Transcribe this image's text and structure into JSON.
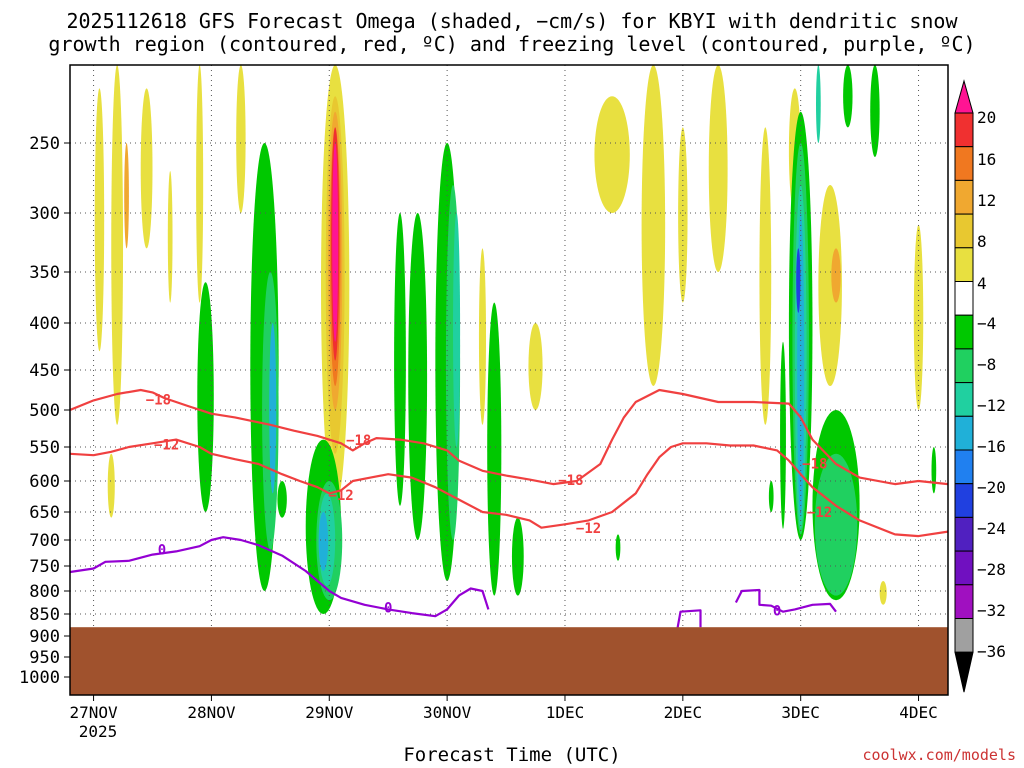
{
  "title_line1": "2025112618 GFS Forecast Omega (shaded, −cm/s) for KBYI with dendritic snow",
  "title_line2": "growth region (contoured, red, ºC) and freezing level (contoured, purple, ºC)",
  "xlabel": "Forecast Time (UTC)",
  "credit": "coolwx.com/models",
  "year_label": "2025",
  "colors": {
    "terrain": "#a0522d",
    "red_contour": "#f04040",
    "purple_contour": "#9400d3",
    "grid": "#555555"
  },
  "chart_data": {
    "type": "time-height cross section",
    "x_ticks": [
      "27NOV",
      "28NOV",
      "29NOV",
      "30NOV",
      "1DEC",
      "2DEC",
      "3DEC",
      "4DEC"
    ],
    "y_ticks": [
      250,
      300,
      350,
      400,
      450,
      500,
      550,
      600,
      650,
      700,
      750,
      800,
      850,
      900,
      950,
      1000
    ],
    "y_tick_labels": [
      "250",
      "300",
      "350",
      "400",
      "450",
      "500",
      "550",
      "600",
      "650",
      "700",
      "750",
      "800",
      "850",
      "900",
      "950",
      "1000"
    ],
    "ylim_hpa": [
      200,
      1000
    ],
    "xlim_days": [
      -0.2,
      7.25
    ],
    "surface_pressure_hpa": 880,
    "colorbar": {
      "labels": [
        "20",
        "16",
        "12",
        "8",
        "4",
        "−4",
        "−8",
        "−12",
        "−16",
        "−20",
        "−24",
        "−28",
        "−32",
        "−36"
      ],
      "colors": [
        "#ff1493",
        "#f03030",
        "#f07820",
        "#f0a830",
        "#e8c830",
        "#e8e040",
        "#ffffff",
        "#00c800",
        "#20d060",
        "#20d0a0",
        "#20b0d8",
        "#2080f0",
        "#2040e0",
        "#5020c0",
        "#7010c0",
        "#a010c0",
        "#a0a0a0",
        "#000000"
      ]
    },
    "contour_labels": [
      {
        "text": "−18",
        "color": "red",
        "day": 0.55,
        "p": 488
      },
      {
        "text": "−12",
        "color": "red",
        "day": 0.62,
        "p": 548
      },
      {
        "text": "−18",
        "color": "red",
        "day": 2.25,
        "p": 542
      },
      {
        "text": "−12",
        "color": "red",
        "day": 2.1,
        "p": 624
      },
      {
        "text": "−18",
        "color": "red",
        "day": 4.05,
        "p": 600
      },
      {
        "text": "−12",
        "color": "red",
        "day": 4.2,
        "p": 680
      },
      {
        "text": "−18",
        "color": "red",
        "day": 6.12,
        "p": 576
      },
      {
        "text": "−12",
        "color": "red",
        "day": 6.16,
        "p": 652
      },
      {
        "text": "0",
        "color": "purple",
        "day": 0.58,
        "p": 720
      },
      {
        "text": "0",
        "color": "purple",
        "day": 2.5,
        "p": 838
      },
      {
        "text": "0",
        "color": "purple",
        "day": 5.8,
        "p": 845
      }
    ],
    "isotherm_m18": [
      [
        -0.2,
        500
      ],
      [
        0.0,
        488
      ],
      [
        0.2,
        480
      ],
      [
        0.4,
        475
      ],
      [
        0.5,
        478
      ],
      [
        0.6,
        485
      ],
      [
        0.8,
        495
      ],
      [
        1.0,
        505
      ],
      [
        1.2,
        510
      ],
      [
        1.5,
        520
      ],
      [
        1.7,
        528
      ],
      [
        1.9,
        535
      ],
      [
        2.1,
        545
      ],
      [
        2.2,
        555
      ],
      [
        2.3,
        545
      ],
      [
        2.4,
        538
      ],
      [
        2.6,
        540
      ],
      [
        2.8,
        545
      ],
      [
        3.0,
        555
      ],
      [
        3.1,
        570
      ],
      [
        3.3,
        585
      ],
      [
        3.5,
        592
      ],
      [
        3.7,
        598
      ],
      [
        3.9,
        605
      ],
      [
        4.1,
        600
      ],
      [
        4.3,
        575
      ],
      [
        4.4,
        540
      ],
      [
        4.5,
        510
      ],
      [
        4.6,
        490
      ],
      [
        4.8,
        475
      ],
      [
        5.0,
        480
      ],
      [
        5.3,
        490
      ],
      [
        5.6,
        490
      ],
      [
        5.9,
        492
      ],
      [
        6.0,
        510
      ],
      [
        6.1,
        540
      ],
      [
        6.3,
        575
      ],
      [
        6.5,
        595
      ],
      [
        6.8,
        605
      ],
      [
        7.0,
        600
      ],
      [
        7.25,
        605
      ]
    ],
    "isotherm_m12": [
      [
        -0.2,
        560
      ],
      [
        0.0,
        562
      ],
      [
        0.15,
        557
      ],
      [
        0.3,
        550
      ],
      [
        0.5,
        545
      ],
      [
        0.7,
        540
      ],
      [
        0.9,
        550
      ],
      [
        1.0,
        560
      ],
      [
        1.2,
        568
      ],
      [
        1.4,
        575
      ],
      [
        1.6,
        590
      ],
      [
        1.75,
        600
      ],
      [
        1.9,
        610
      ],
      [
        2.0,
        620
      ],
      [
        2.1,
        615
      ],
      [
        2.2,
        600
      ],
      [
        2.35,
        595
      ],
      [
        2.5,
        590
      ],
      [
        2.7,
        595
      ],
      [
        2.9,
        610
      ],
      [
        3.1,
        630
      ],
      [
        3.3,
        650
      ],
      [
        3.5,
        655
      ],
      [
        3.7,
        665
      ],
      [
        3.8,
        678
      ],
      [
        4.0,
        672
      ],
      [
        4.2,
        665
      ],
      [
        4.4,
        650
      ],
      [
        4.6,
        620
      ],
      [
        4.7,
        590
      ],
      [
        4.8,
        565
      ],
      [
        4.9,
        550
      ],
      [
        5.0,
        545
      ],
      [
        5.2,
        545
      ],
      [
        5.4,
        548
      ],
      [
        5.6,
        548
      ],
      [
        5.8,
        555
      ],
      [
        5.9,
        570
      ],
      [
        6.0,
        590
      ],
      [
        6.1,
        610
      ],
      [
        6.3,
        640
      ],
      [
        6.5,
        665
      ],
      [
        6.8,
        690
      ],
      [
        7.0,
        693
      ],
      [
        7.25,
        685
      ]
    ],
    "isotherm_0": [
      [
        -0.2,
        762
      ],
      [
        0.0,
        755
      ],
      [
        0.1,
        742
      ],
      [
        0.3,
        740
      ],
      [
        0.5,
        728
      ],
      [
        0.7,
        722
      ],
      [
        0.9,
        712
      ],
      [
        1.0,
        700
      ],
      [
        1.1,
        695
      ],
      [
        1.25,
        700
      ],
      [
        1.4,
        710
      ],
      [
        1.6,
        730
      ],
      [
        1.8,
        760
      ],
      [
        2.0,
        800
      ],
      [
        2.1,
        815
      ],
      [
        2.3,
        830
      ],
      [
        2.5,
        840
      ],
      [
        2.7,
        848
      ],
      [
        2.9,
        855
      ],
      [
        3.0,
        840
      ],
      [
        3.1,
        810
      ],
      [
        3.2,
        795
      ],
      [
        3.3,
        800
      ],
      [
        3.35,
        840
      ]
    ]
  }
}
